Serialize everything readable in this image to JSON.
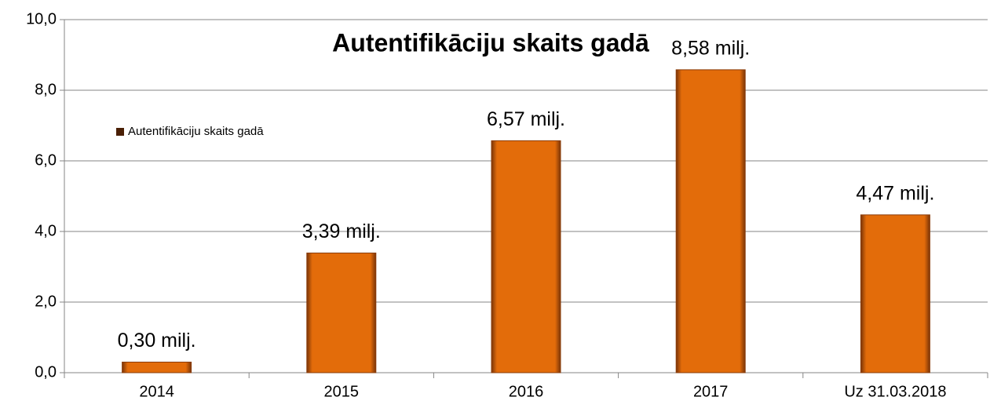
{
  "chart_data": {
    "type": "bar",
    "title": "Autentifikāciju skaits gadā",
    "categories": [
      "2014",
      "2015",
      "2016",
      "2017",
      "Uz 31.03.2018"
    ],
    "series": [
      {
        "name": "Autentifikāciju skaits gadā",
        "color": "#e36c0a",
        "values": [
          0.3,
          3.39,
          6.57,
          8.58,
          4.47
        ],
        "value_labels": [
          "0,30 milj.",
          "3,39 milj.",
          "6,57 milj.",
          "8,58 milj.",
          "4,47 milj."
        ]
      }
    ],
    "ylim": [
      0,
      10
    ],
    "yticks": [
      {
        "value": 0,
        "label": "0,0"
      },
      {
        "value": 2,
        "label": "2,0"
      },
      {
        "value": 4,
        "label": "4,0"
      },
      {
        "value": 6,
        "label": "6,0"
      },
      {
        "value": 8,
        "label": "8,0"
      },
      {
        "value": 10,
        "label": "10,0"
      }
    ],
    "grid": true,
    "legend": "left"
  }
}
